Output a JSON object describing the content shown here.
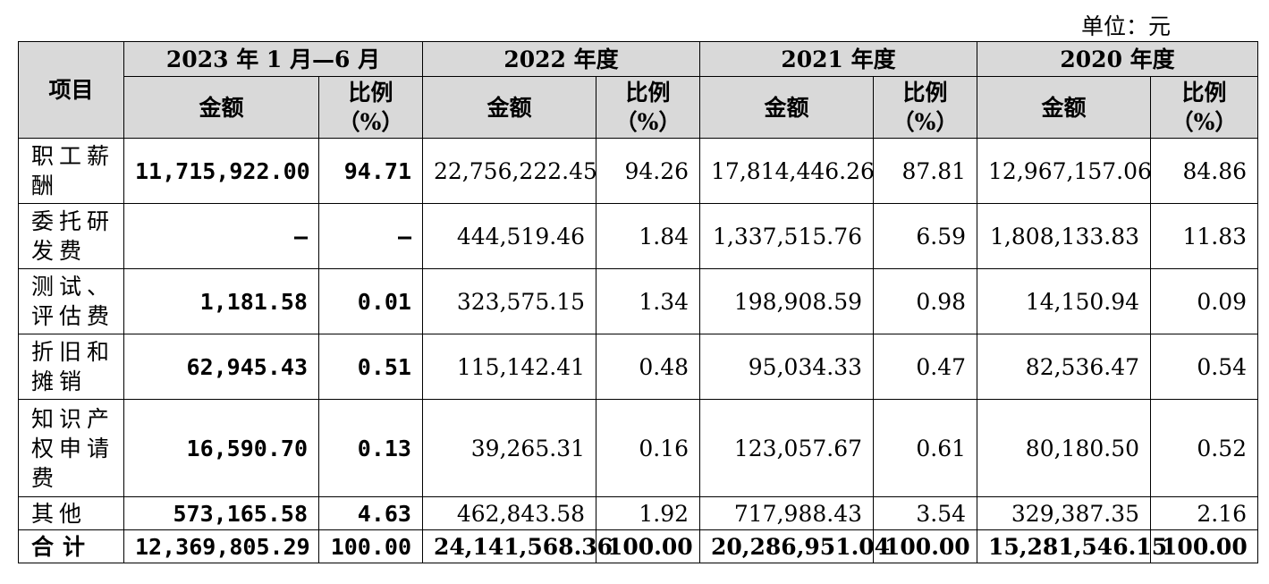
{
  "unit_label": "单位：元",
  "header": {
    "item": "项目",
    "periods": [
      "2023 年 1 月—6 月",
      "2022 年度",
      "2021 年度",
      "2020 年度"
    ],
    "amount": "金额",
    "ratio": "比例（%）"
  },
  "rows": [
    {
      "label": "职工薪酬",
      "cells": [
        "11,715,922.00",
        "94.71",
        "22,756,222.45",
        "94.26",
        "17,814,446.26",
        "87.81",
        "12,967,157.06",
        "84.86"
      ]
    },
    {
      "label": "委托研发费",
      "cells": [
        "–",
        "–",
        "444,519.46",
        "1.84",
        "1,337,515.76",
        "6.59",
        "1,808,133.83",
        "11.83"
      ]
    },
    {
      "label": "测试、评估费",
      "cells": [
        "1,181.58",
        "0.01",
        "323,575.15",
        "1.34",
        "198,908.59",
        "0.98",
        "14,150.94",
        "0.09"
      ]
    },
    {
      "label": "折旧和摊销",
      "cells": [
        "62,945.43",
        "0.51",
        "115,142.41",
        "0.48",
        "95,034.33",
        "0.47",
        "82,536.47",
        "0.54"
      ]
    },
    {
      "label": "知识产权申请费",
      "cells": [
        "16,590.70",
        "0.13",
        "39,265.31",
        "0.16",
        "123,057.67",
        "0.61",
        "80,180.50",
        "0.52"
      ]
    },
    {
      "label": "其他",
      "cells": [
        "573,165.58",
        "4.63",
        "462,843.58",
        "1.92",
        "717,988.43",
        "3.54",
        "329,387.35",
        "2.16"
      ]
    },
    {
      "label": "合计",
      "cells": [
        "12,369,805.29",
        "100.00",
        "24,141,568.36",
        "100.00",
        "20,286,951.04",
        "100.00",
        "15,281,546.15",
        "100.00"
      ]
    }
  ]
}
